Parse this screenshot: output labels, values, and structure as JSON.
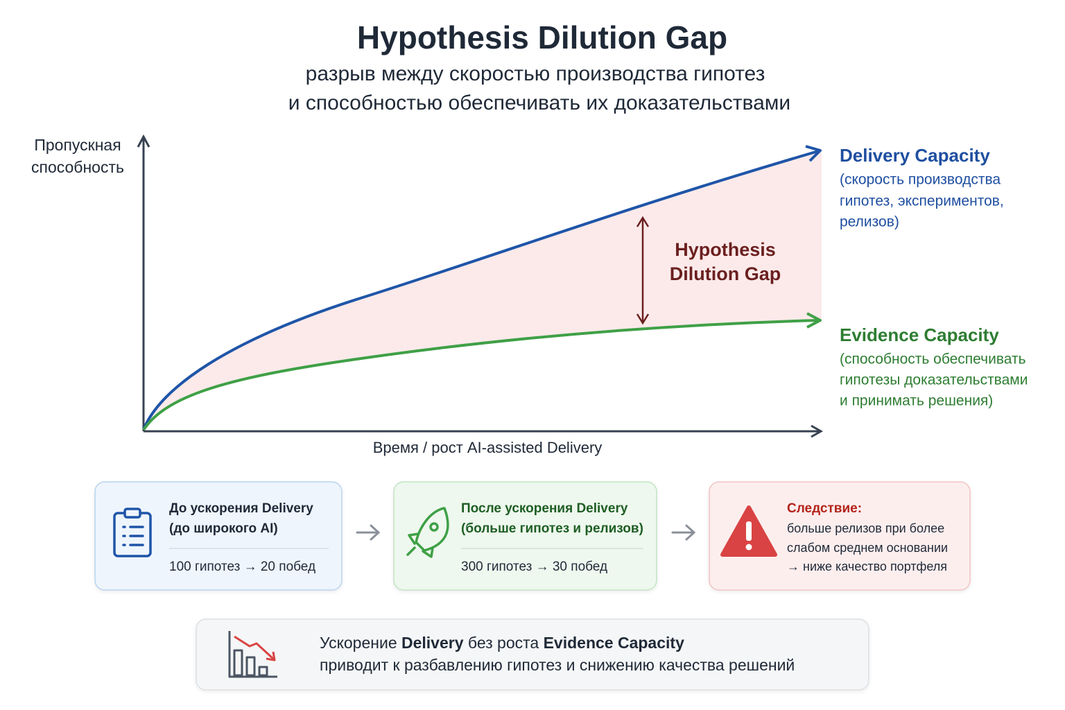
{
  "header": {
    "title": "Hypothesis Dilution Gap",
    "subtitle_lines": [
      "разрыв между скоростью производства гипотез",
      "и способностью обеспечивать их доказательствами"
    ]
  },
  "diagram": {
    "y_axis_label_lines": [
      "Пропускная",
      "способность"
    ],
    "x_axis_label": "Время / рост AI-assisted Delivery",
    "gap_label_lines": [
      "Hypothesis",
      "Dilution Gap"
    ],
    "delivery": {
      "name": "Delivery Capacity",
      "description_lines": [
        "(скорость производства",
        "гипотез, экспериментов,",
        "релизов)"
      ]
    },
    "evidence": {
      "name": "Evidence Capacity",
      "description_lines": [
        "(способность обеспечивать",
        "гипотезы доказательствами",
        "и принимать решения)"
      ]
    }
  },
  "cards": [
    {
      "title_lines": [
        "До ускорения Delivery",
        "(до широкого AI)"
      ],
      "body_lines": [
        "100 гипотез → 20 побед"
      ]
    },
    {
      "title_lines": [
        "После ускорения Delivery",
        "(больше гипотез и релизов)"
      ],
      "body_lines": [
        "300 гипотез → 30 побед"
      ]
    },
    {
      "title_lines": [
        "Следствие:"
      ],
      "body_lines": [
        "больше релизов при более",
        "слабом среднем основании",
        "→ ниже качество портфеля"
      ]
    }
  ],
  "conclusion": {
    "line_1_parts": [
      "Ускорение ",
      "Delivery",
      " без роста ",
      "Evidence Capacity"
    ],
    "line_2": "приводит к разбавлению гипотез и снижению качества решений"
  }
}
